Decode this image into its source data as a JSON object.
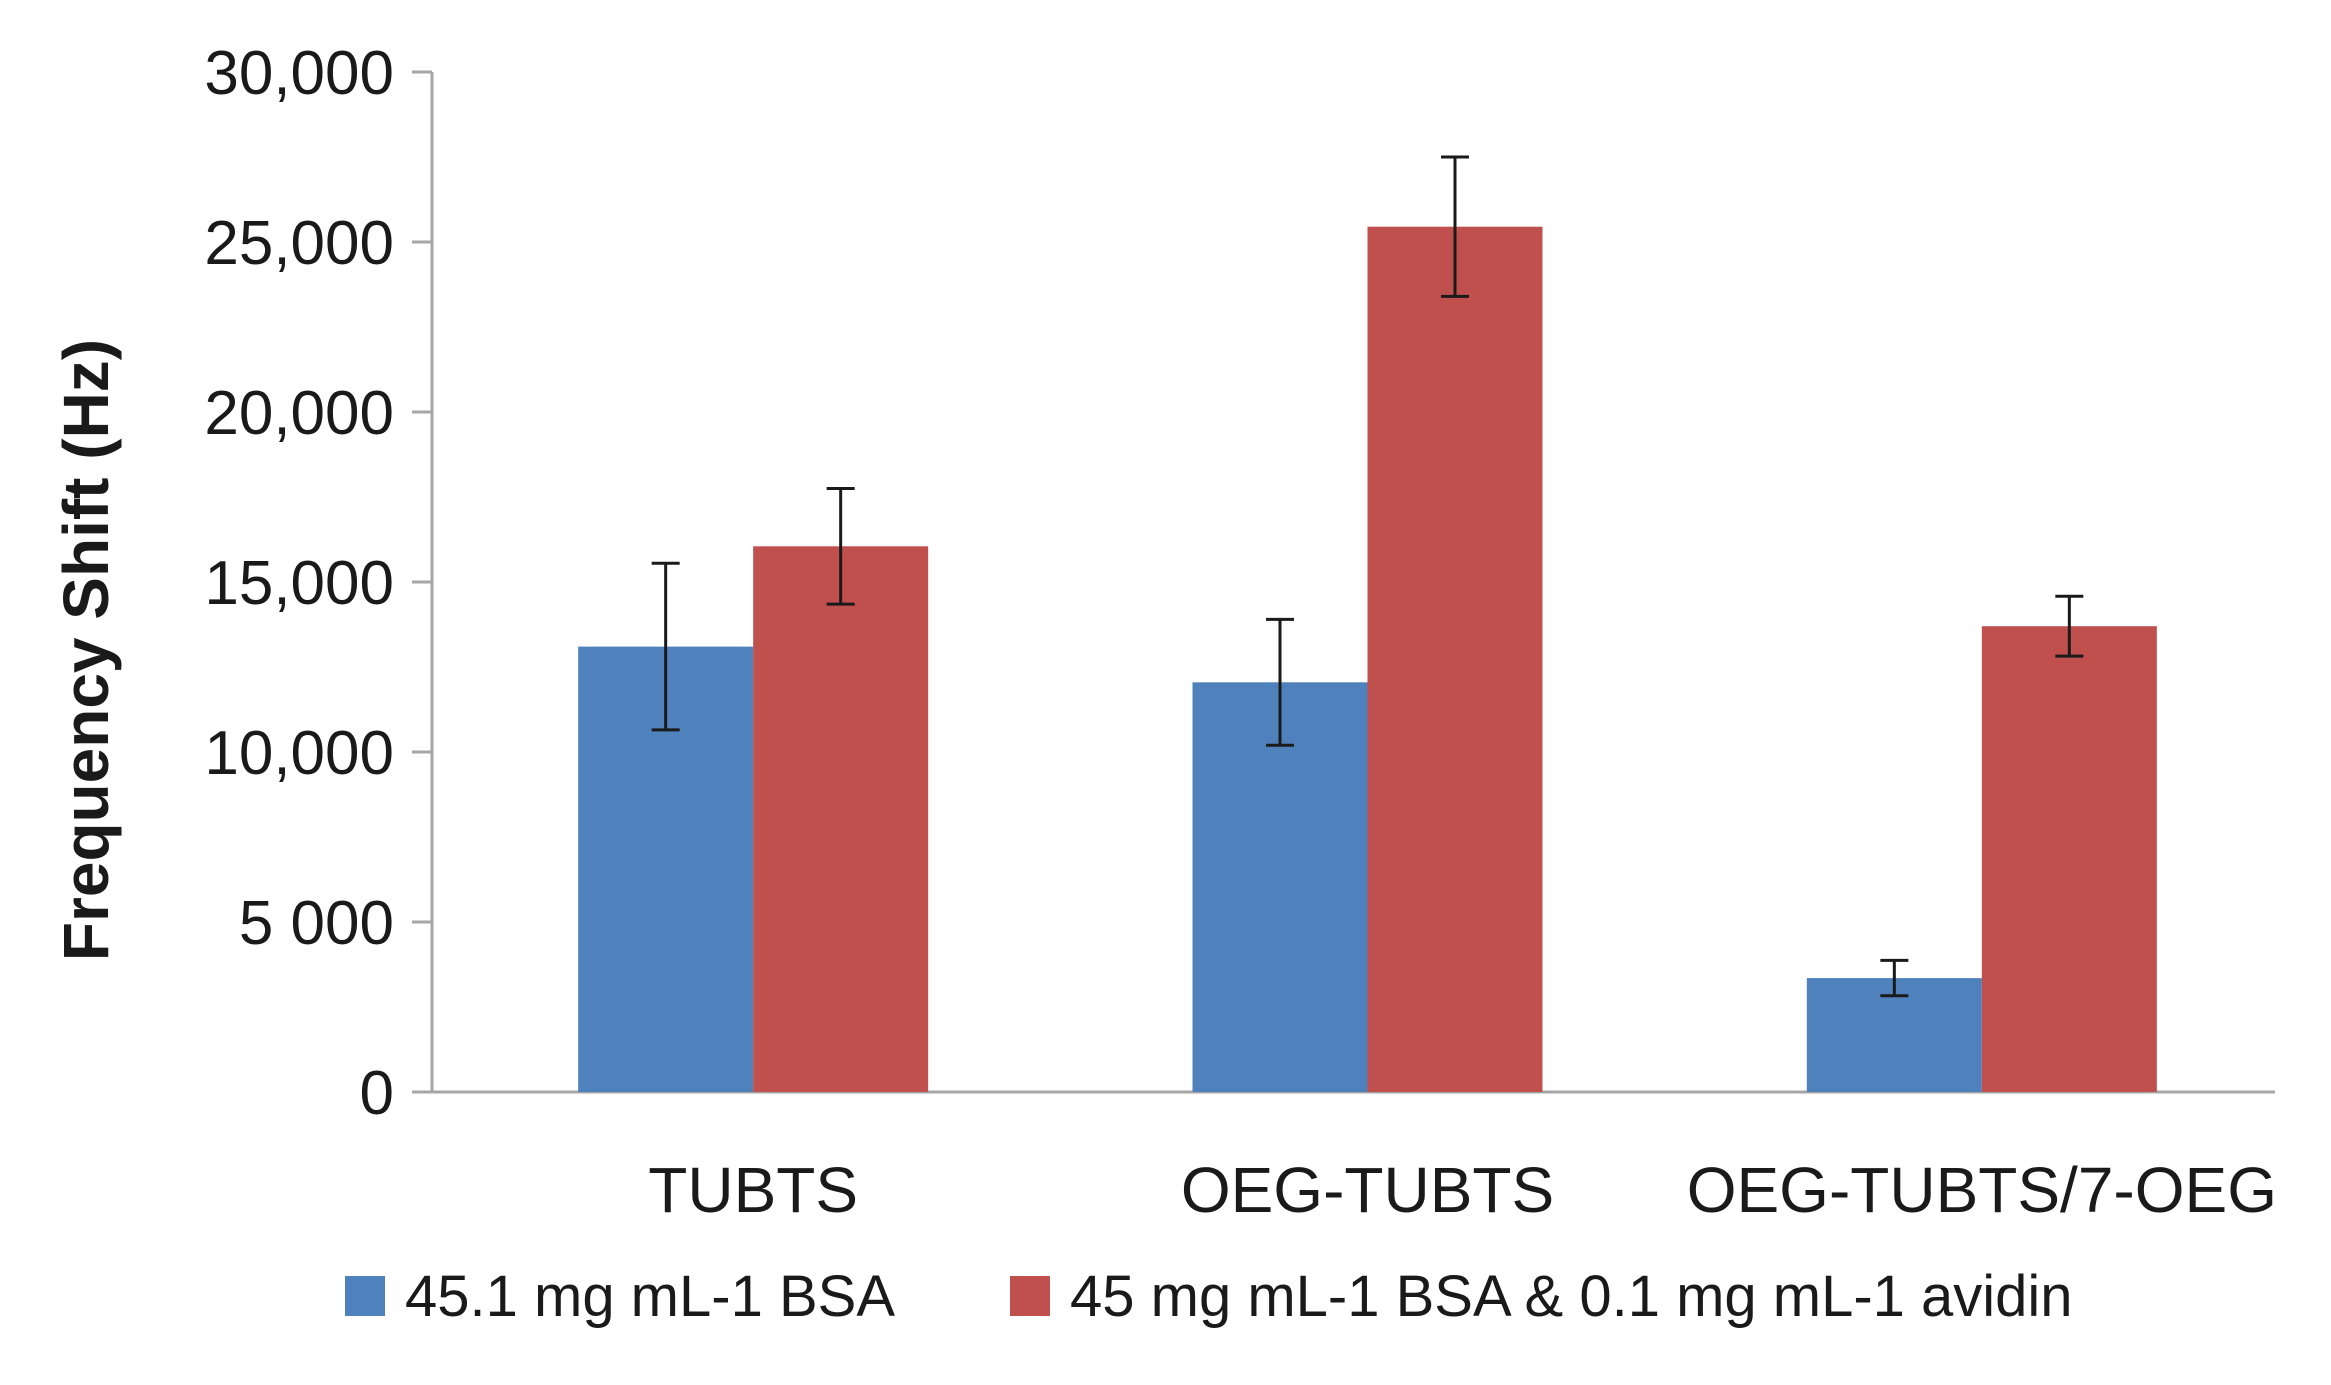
{
  "chart_data": {
    "type": "bar",
    "title": "",
    "xlabel": "",
    "ylabel": "Frequency Shift (Hz)",
    "ylim": [
      0,
      30000
    ],
    "yticks": [
      0,
      5000,
      10000,
      15000,
      20000,
      25000,
      30000
    ],
    "ytick_labels": [
      "0",
      "5 000",
      "10,000",
      "15,000",
      "20,000",
      "25,000",
      "30,000"
    ],
    "categories": [
      "TUBTS",
      "OEG-TUBTS",
      "OEG-TUBTS/7-OEG"
    ],
    "series": [
      {
        "name": "45.1 mg mL-1 BSA",
        "color": "#4f81bd",
        "values": [
          13100,
          12050,
          3350
        ],
        "errors": [
          2450,
          1850,
          520
        ]
      },
      {
        "name": "45 mg mL-1 BSA & 0.1 mg mL-1 avidin",
        "color": "#c0504d",
        "values": [
          16050,
          25450,
          13700
        ],
        "errors": [
          1700,
          2050,
          880
        ]
      }
    ],
    "grid": false,
    "legend_position": "bottom"
  }
}
